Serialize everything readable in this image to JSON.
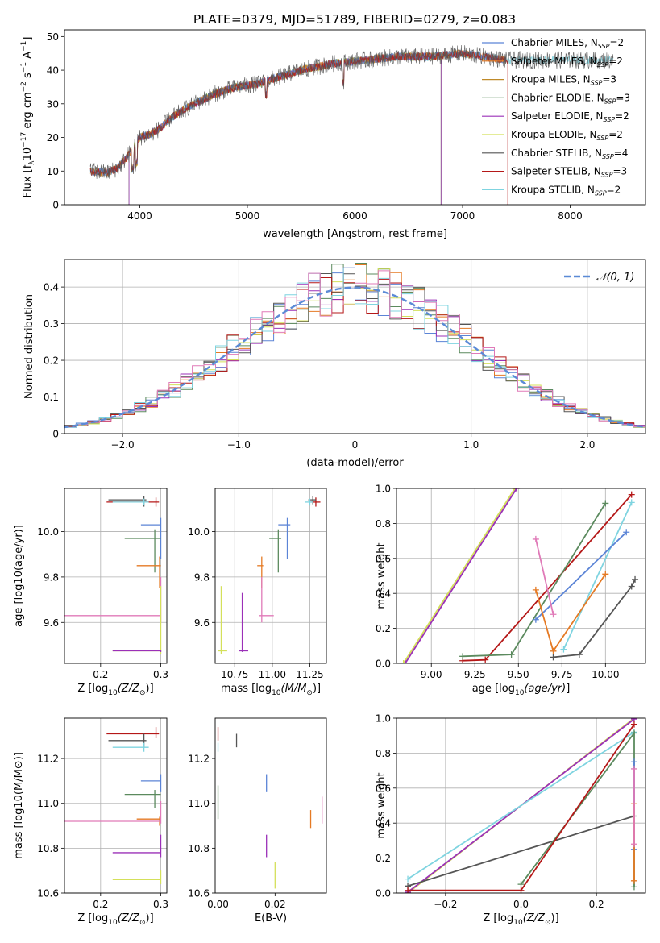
{
  "figure_title": "PLATE=0379, MJD=51789, FIBERID=0279, z=0.083",
  "colors": {
    "chabrier_miles": "#5b84d6",
    "salpeter_miles": "#e57a24",
    "kroupa_miles": "#bf8a2a",
    "chabrier_elodie": "#5b8a5e",
    "salpeter_elodie": "#9b30b8",
    "kroupa_elodie": "#d4e05a",
    "chabrier_stelib": "#555555",
    "salpeter_stelib": "#b51818",
    "kroupa_stelib": "#7fd4e0",
    "pink": "#e07ab8",
    "gaussian": "#5b8ad6"
  },
  "chart_data": [
    {
      "id": "spectrum",
      "type": "line",
      "title": "PLATE=0379, MJD=51789, FIBERID=0279, z=0.083",
      "xlabel": "wavelength [Angstrom, rest frame]",
      "ylabel_parts": [
        "Flux [f",
        "λ",
        "10",
        "−17",
        " erg cm",
        "−2",
        " s",
        "−1",
        " A",
        "−1",
        "]"
      ],
      "xlim": [
        3300,
        8700
      ],
      "ylim": [
        0,
        52
      ],
      "xticks": [
        4000,
        5000,
        6000,
        7000,
        8000
      ],
      "yticks": [
        0,
        10,
        20,
        30,
        40,
        50
      ],
      "grid": false,
      "legend_position": "right",
      "continuum": [
        [
          3540,
          10
        ],
        [
          3700,
          9.5
        ],
        [
          3800,
          11
        ],
        [
          3900,
          15
        ],
        [
          4000,
          20
        ],
        [
          4100,
          21
        ],
        [
          4200,
          23
        ],
        [
          4300,
          26
        ],
        [
          4500,
          30
        ],
        [
          4700,
          33
        ],
        [
          4900,
          35
        ],
        [
          5100,
          36
        ],
        [
          5300,
          38
        ],
        [
          5500,
          40
        ],
        [
          5800,
          42
        ],
        [
          6100,
          43
        ],
        [
          6400,
          44
        ],
        [
          6700,
          44
        ],
        [
          7000,
          45
        ],
        [
          7200,
          44
        ],
        [
          7400,
          43
        ]
      ],
      "series": [
        {
          "name": "Chabrier MILES",
          "nssp": "2",
          "x_range": [
            3540,
            7400
          ]
        },
        {
          "name": "Salpeter MILES",
          "nssp": "2",
          "x_range": [
            3540,
            7400
          ]
        },
        {
          "name": "Kroupa MILES",
          "nssp": "3",
          "x_range": [
            3540,
            7400
          ]
        },
        {
          "name": "Chabrier ELODIE",
          "nssp": "3",
          "x_range": [
            3900,
            6800
          ]
        },
        {
          "name": "Salpeter ELODIE",
          "nssp": "2",
          "x_range": [
            3900,
            6800
          ]
        },
        {
          "name": "Kroupa ELODIE",
          "nssp": "2",
          "x_range": [
            3900,
            6800
          ]
        },
        {
          "name": "Chabrier STELIB",
          "nssp": "4",
          "x_range": [
            3540,
            8400
          ]
        },
        {
          "name": "Salpeter STELIB",
          "nssp": "3",
          "x_range": [
            3540,
            7420
          ]
        },
        {
          "name": "Kroupa STELIB",
          "nssp": "2",
          "x_range": [
            3540,
            8400
          ]
        }
      ],
      "legend_labels": {
        "nssp_prefix": "N",
        "nssp_sub": "SSP",
        "eq": "="
      }
    },
    {
      "id": "residuals",
      "type": "histogram",
      "xlabel": "(data-model)/error",
      "ylabel": "Normed distribution",
      "xlim": [
        -2.5,
        2.5
      ],
      "ylim": [
        0,
        0.475
      ],
      "xticks": [
        -2,
        -1,
        0,
        1,
        2
      ],
      "yticks": [
        0.0,
        0.1,
        0.2,
        0.3,
        0.4
      ],
      "grid": true,
      "legend": {
        "label": "𝒩(0, 1)",
        "position": "top-right"
      },
      "bin_width": 0.1,
      "gaussian": {
        "mu": 0,
        "sigma": 1
      }
    },
    {
      "id": "age_vs_Z",
      "type": "scatter",
      "xlabel_prefix": "Z [log",
      "xlabel_math": "(Z/Z",
      "xlabel_suffix": ")]",
      "ylabel": "age  [log10(age/yr)]",
      "xlim": [
        0.14,
        0.31
      ],
      "ylim": [
        9.42,
        10.19
      ],
      "xticks": [
        0.2,
        0.3
      ],
      "yticks": [
        9.6,
        9.8,
        10.0
      ],
      "grid": true,
      "points": [
        {
          "c": "salpeter_stelib",
          "x": 0.292,
          "y": 10.13,
          "xl": 0.21,
          "xh": 0.297,
          "yl": 10.11,
          "yh": 10.15
        },
        {
          "c": "chabrier_stelib",
          "x": 0.272,
          "y": 10.14,
          "xl": 0.213,
          "xh": 0.276,
          "yl": 10.11,
          "yh": 10.155
        },
        {
          "c": "kroupa_stelib",
          "x": 0.272,
          "y": 10.13,
          "xl": 0.22,
          "xh": 0.28,
          "yl": 10.115,
          "yh": 10.145
        },
        {
          "c": "chabrier_miles",
          "x": 0.3,
          "y": 10.03,
          "xl": 0.267,
          "xh": 0.3,
          "yl": 9.88,
          "yh": 10.06
        },
        {
          "c": "chabrier_elodie",
          "x": 0.29,
          "y": 9.97,
          "xl": 0.24,
          "xh": 0.3,
          "yl": 9.82,
          "yh": 10.01
        },
        {
          "c": "salpeter_miles",
          "x": 0.298,
          "y": 9.85,
          "xl": 0.26,
          "xh": 0.3,
          "yl": 9.75,
          "yh": 9.89
        },
        {
          "c": "pink",
          "x": 0.3,
          "y": 9.63,
          "xl": 0.14,
          "xh": 0.3,
          "yl": 9.6,
          "yh": 9.8
        },
        {
          "c": "kroupa_elodie",
          "x": 0.3,
          "y": 9.475,
          "xl": 0.22,
          "xh": 0.3,
          "yl": 9.46,
          "yh": 9.76
        },
        {
          "c": "salpeter_elodie",
          "x": 0.3,
          "y": 9.475,
          "xl": 0.22,
          "xh": 0.3,
          "yl": 9.47,
          "yh": 9.48
        }
      ]
    },
    {
      "id": "age_vs_mass",
      "type": "scatter",
      "xlabel_prefix": "mass [log",
      "xlabel_math": "(M/M",
      "xlabel_suffix": ")]",
      "ylabel": "",
      "xlim": [
        10.62,
        11.36
      ],
      "ylim": [
        9.42,
        10.19
      ],
      "xticks": [
        10.75,
        11.0,
        11.25
      ],
      "yticks": [
        9.6,
        9.8,
        10.0
      ],
      "grid": true,
      "points": [
        {
          "c": "salpeter_stelib",
          "x": 11.29,
          "y": 10.13,
          "xl": 11.26,
          "xh": 11.32,
          "yl": 10.11,
          "yh": 10.15
        },
        {
          "c": "chabrier_stelib",
          "x": 11.27,
          "y": 10.14,
          "xl": 11.24,
          "xh": 11.29,
          "yl": 10.12,
          "yh": 10.155
        },
        {
          "c": "kroupa_stelib",
          "x": 11.25,
          "y": 10.13,
          "xl": 11.22,
          "xh": 11.27,
          "yl": 10.115,
          "yh": 10.145
        },
        {
          "c": "chabrier_miles",
          "x": 11.1,
          "y": 10.03,
          "xl": 11.04,
          "xh": 11.12,
          "yl": 9.88,
          "yh": 10.06
        },
        {
          "c": "chabrier_elodie",
          "x": 11.04,
          "y": 9.97,
          "xl": 10.98,
          "xh": 11.06,
          "yl": 9.82,
          "yh": 10.01
        },
        {
          "c": "salpeter_miles",
          "x": 10.93,
          "y": 9.85,
          "xl": 10.9,
          "xh": 10.94,
          "yl": 9.75,
          "yh": 9.89
        },
        {
          "c": "pink",
          "x": 10.93,
          "y": 9.63,
          "xl": 10.91,
          "xh": 11.01,
          "yl": 9.6,
          "yh": 9.8
        },
        {
          "c": "kroupa_elodie",
          "x": 10.66,
          "y": 9.475,
          "xl": 10.64,
          "xh": 10.7,
          "yl": 9.46,
          "yh": 9.76
        },
        {
          "c": "salpeter_elodie",
          "x": 10.8,
          "y": 9.475,
          "xl": 10.78,
          "xh": 10.84,
          "yl": 9.47,
          "yh": 9.73
        }
      ]
    },
    {
      "id": "weight_vs_age",
      "type": "line",
      "xlabel_prefix": "age  [log",
      "xlabel_math": "(age/yr)",
      "xlabel_suffix": "]",
      "ylabel": "mass weight",
      "xlim": [
        8.8,
        10.23
      ],
      "ylim": [
        0,
        1
      ],
      "xticks": [
        9.0,
        9.25,
        9.5,
        9.75,
        10.0
      ],
      "xtick_labels": [
        "9.00",
        "9.25",
        "9.50",
        "9.75",
        "10.00"
      ],
      "yticks": [
        0.0,
        0.2,
        0.4,
        0.6,
        0.8,
        1.0
      ],
      "grid": true,
      "series": [
        {
          "c": "kroupa_elodie",
          "pts": [
            [
              8.84,
              0
            ],
            [
              9.48,
              1.0
            ]
          ]
        },
        {
          "c": "salpeter_elodie",
          "pts": [
            [
              8.85,
              0
            ],
            [
              9.49,
              1.0
            ]
          ]
        },
        {
          "c": "salpeter_stelib",
          "pts": [
            [
              9.18,
              0.015
            ],
            [
              9.31,
              0.02
            ],
            [
              10.15,
              0.965
            ]
          ]
        },
        {
          "c": "chabrier_elodie",
          "pts": [
            [
              9.18,
              0.04
            ],
            [
              9.46,
              0.05
            ],
            [
              10.0,
              0.915
            ]
          ]
        },
        {
          "c": "kroupa_stelib",
          "pts": [
            [
              9.76,
              0.08
            ],
            [
              10.15,
              0.92
            ]
          ]
        },
        {
          "c": "chabrier_miles",
          "pts": [
            [
              9.6,
              0.25
            ],
            [
              10.12,
              0.75
            ]
          ]
        },
        {
          "c": "pink",
          "pts": [
            [
              9.6,
              0.71
            ],
            [
              9.7,
              0.28
            ]
          ]
        },
        {
          "c": "salpeter_miles",
          "pts": [
            [
              9.6,
              0.42
            ],
            [
              9.7,
              0.07
            ],
            [
              10.0,
              0.51
            ]
          ]
        },
        {
          "c": "chabrier_stelib",
          "pts": [
            [
              9.7,
              0.035
            ],
            [
              9.85,
              0.05
            ],
            [
              10.15,
              0.44
            ],
            [
              10.17,
              0.48
            ]
          ]
        }
      ]
    },
    {
      "id": "mass_vs_Z",
      "type": "scatter",
      "xlabel_prefix": "Z [log",
      "xlabel_math": "(Z/Z",
      "xlabel_suffix": ")]",
      "ylabel": "mass [log10(M/M⊙)]",
      "xlim": [
        0.14,
        0.31
      ],
      "ylim": [
        10.6,
        11.38
      ],
      "xticks": [
        0.2,
        0.3
      ],
      "yticks": [
        10.6,
        10.8,
        11.0,
        11.2
      ],
      "grid": true,
      "points": [
        {
          "c": "salpeter_stelib",
          "x": 0.292,
          "y": 11.31,
          "xl": 0.21,
          "xh": 0.297,
          "yl": 11.29,
          "yh": 11.34
        },
        {
          "c": "chabrier_stelib",
          "x": 0.272,
          "y": 11.28,
          "xl": 0.213,
          "xh": 0.276,
          "yl": 11.25,
          "yh": 11.31
        },
        {
          "c": "kroupa_stelib",
          "x": 0.272,
          "y": 11.25,
          "xl": 0.22,
          "xh": 0.28,
          "yl": 11.23,
          "yh": 11.27
        },
        {
          "c": "chabrier_miles",
          "x": 0.3,
          "y": 11.1,
          "xl": 0.267,
          "xh": 0.3,
          "yl": 11.05,
          "yh": 11.13
        },
        {
          "c": "chabrier_elodie",
          "x": 0.29,
          "y": 11.04,
          "xl": 0.24,
          "xh": 0.3,
          "yl": 10.98,
          "yh": 11.06
        },
        {
          "c": "salpeter_miles",
          "x": 0.298,
          "y": 10.93,
          "xl": 0.26,
          "xh": 0.3,
          "yl": 10.9,
          "yh": 10.94
        },
        {
          "c": "pink",
          "x": 0.3,
          "y": 10.92,
          "xl": 0.14,
          "xh": 0.3,
          "yl": 10.91,
          "yh": 11.01
        },
        {
          "c": "salpeter_elodie",
          "x": 0.3,
          "y": 10.78,
          "xl": 0.22,
          "xh": 0.3,
          "yl": 10.76,
          "yh": 10.86
        },
        {
          "c": "kroupa_elodie",
          "x": 0.3,
          "y": 10.66,
          "xl": 0.22,
          "xh": 0.3,
          "yl": 10.64,
          "yh": 10.7
        }
      ]
    },
    {
      "id": "mass_vs_ebv",
      "type": "scatter",
      "xlabel": "E(B-V)",
      "ylabel": "",
      "xlim": [
        -0.001,
        0.038
      ],
      "ylim": [
        10.6,
        11.38
      ],
      "xticks": [
        0.0,
        0.02
      ],
      "xtick_labels": [
        "0.00",
        "0.02"
      ],
      "yticks": [
        10.6,
        10.8,
        11.0,
        11.2
      ],
      "grid": false,
      "points": [
        {
          "c": "salpeter_stelib",
          "x": 0.0,
          "y": 11.31,
          "yl": 11.28,
          "yh": 11.34
        },
        {
          "c": "kroupa_stelib",
          "x": 0.0,
          "y": 11.25,
          "yl": 11.23,
          "yh": 11.27
        },
        {
          "c": "chabrier_stelib",
          "x": 0.0065,
          "y": 11.28,
          "yl": 11.25,
          "yh": 11.31
        },
        {
          "c": "chabrier_elodie",
          "x": 0.0,
          "y": 11.0,
          "yl": 10.93,
          "yh": 11.08
        },
        {
          "c": "chabrier_miles",
          "x": 0.017,
          "y": 11.09,
          "yl": 11.05,
          "yh": 11.13
        },
        {
          "c": "salpeter_elodie",
          "x": 0.017,
          "y": 10.81,
          "yl": 10.76,
          "yh": 10.86
        },
        {
          "c": "salpeter_miles",
          "x": 0.0325,
          "y": 10.93,
          "yl": 10.89,
          "yh": 10.97
        },
        {
          "c": "pink",
          "x": 0.0365,
          "y": 10.96,
          "yl": 10.91,
          "yh": 11.03
        },
        {
          "c": "kroupa_elodie",
          "x": 0.02,
          "y": 10.68,
          "yl": 10.62,
          "yh": 10.74
        }
      ]
    },
    {
      "id": "weight_vs_Z",
      "type": "line",
      "xlabel_prefix": "Z [log",
      "xlabel_math": "(Z/Z",
      "xlabel_suffix": ")]",
      "ylabel": "mass weight",
      "xlim": [
        -0.33,
        0.33
      ],
      "ylim": [
        0,
        1
      ],
      "xticks": [
        -0.2,
        0.0,
        0.2
      ],
      "xtick_labels": [
        "−0.2",
        "0.0",
        "0.2"
      ],
      "yticks": [
        0.0,
        0.2,
        0.4,
        0.6,
        0.8,
        1.0
      ],
      "grid": true,
      "series": [
        {
          "c": "kroupa_elodie",
          "pts": [
            [
              -0.3,
              0
            ],
            [
              0.3,
              1.0
            ]
          ]
        },
        {
          "c": "salpeter_elodie",
          "pts": [
            [
              -0.3,
              0.005
            ],
            [
              0.3,
              0.995
            ]
          ]
        },
        {
          "c": "kroupa_stelib",
          "pts": [
            [
              -0.3,
              0.08
            ],
            [
              0.3,
              0.92
            ]
          ]
        },
        {
          "c": "chabrier_stelib",
          "pts": [
            [
              -0.3,
              0.04
            ],
            [
              0.3,
              0.44
            ]
          ]
        },
        {
          "c": "chabrier_elodie",
          "pts": [
            [
              0.0,
              0.05
            ],
            [
              0.3,
              0.915
            ],
            [
              0.3,
              0.035
            ]
          ]
        },
        {
          "c": "salpeter_stelib",
          "pts": [
            [
              -0.3,
              0.015
            ],
            [
              0.0,
              0.015
            ],
            [
              0.3,
              0.965
            ]
          ]
        },
        {
          "c": "chabrier_miles",
          "pts": [
            [
              0.3,
              0.25
            ],
            [
              0.3,
              0.75
            ]
          ]
        },
        {
          "c": "salpeter_miles",
          "pts": [
            [
              0.3,
              0.07
            ],
            [
              0.3,
              0.51
            ]
          ]
        },
        {
          "c": "pink",
          "pts": [
            [
              0.3,
              0.28
            ],
            [
              0.3,
              0.71
            ]
          ]
        }
      ]
    }
  ]
}
